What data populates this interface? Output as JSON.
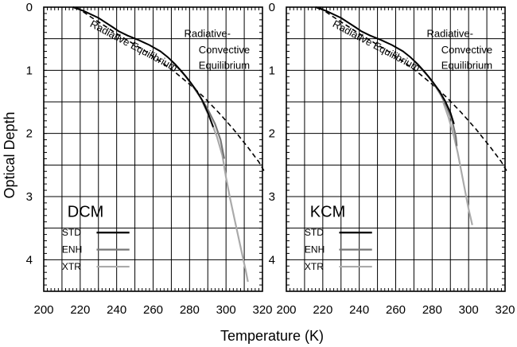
{
  "chart_data": {
    "type": "line",
    "xlabel": "Temperature (K)",
    "ylabel": "Optical Depth",
    "xlim": [
      200,
      320
    ],
    "ylim": [
      0,
      4.5
    ],
    "y_inverted": true,
    "xticks": [
      "200",
      "220",
      "240",
      "260",
      "280",
      "300",
      "320"
    ],
    "yticks": [
      "0",
      "1",
      "2",
      "3",
      "4"
    ],
    "grid": true,
    "legend_position": "bottom-left",
    "series_colors": {
      "STD": "#000000",
      "ENH": "#777777",
      "XTR": "#aaaaaa"
    },
    "reference_color": "#000000",
    "panels": [
      {
        "label": "DCM",
        "annotations": [
          {
            "text": "Radiative Equilibrium",
            "x": 225,
            "y": 0.3,
            "angle": 28
          },
          {
            "text": "Radiative-",
            "x": 277,
            "y": 0.47
          },
          {
            "text": "Convective",
            "x": 285,
            "y": 0.73
          },
          {
            "text": "Equilibrium",
            "x": 285,
            "y": 0.98
          }
        ],
        "series": [
          {
            "name": "STD",
            "x": [
              216,
              222,
              230,
              238,
              241,
              246,
              252,
              258,
              264,
              268,
              272,
              276,
              280,
              284,
              287,
              290,
              293
            ],
            "y": [
              0,
              0.06,
              0.17,
              0.32,
              0.38,
              0.45,
              0.52,
              0.6,
              0.7,
              0.79,
              0.9,
              1.03,
              1.17,
              1.33,
              1.48,
              1.67,
              1.9
            ]
          },
          {
            "name": "ENH",
            "x": [
              270,
              274,
              278,
              282,
              286,
              290,
              294,
              297,
              299
            ],
            "y": [
              0.85,
              0.97,
              1.1,
              1.26,
              1.43,
              1.62,
              1.85,
              2.1,
              2.4
            ]
          },
          {
            "name": "XTR",
            "x": [
              287,
              291,
              295,
              298,
              300,
              302,
              305,
              308,
              311,
              312
            ],
            "y": [
              1.5,
              1.75,
              2.05,
              2.35,
              2.7,
              3.0,
              3.4,
              3.8,
              4.2,
              4.35
            ]
          }
        ],
        "reference": {
          "name": "Radiative Equilibrium",
          "x": [
            218,
            225,
            232,
            240,
            248,
            256,
            264,
            272,
            280,
            288,
            296,
            304,
            312,
            318,
            321
          ],
          "y": [
            0,
            0.14,
            0.27,
            0.42,
            0.56,
            0.7,
            0.86,
            1.03,
            1.22,
            1.43,
            1.67,
            1.93,
            2.22,
            2.45,
            2.6
          ]
        }
      },
      {
        "label": "KCM",
        "annotations": [
          {
            "text": "Radiative Equilibrium",
            "x": 225,
            "y": 0.3,
            "angle": 28
          },
          {
            "text": "Radiative-",
            "x": 277,
            "y": 0.47
          },
          {
            "text": "Convective",
            "x": 285,
            "y": 0.73
          },
          {
            "text": "Equilibrium",
            "x": 285,
            "y": 0.98
          }
        ],
        "series": [
          {
            "name": "STD",
            "x": [
              216,
              222,
              230,
              238,
              241,
              246,
              252,
              258,
              264,
              268,
              272,
              276,
              280,
              284,
              287,
              290,
              292
            ],
            "y": [
              0,
              0.06,
              0.17,
              0.32,
              0.38,
              0.45,
              0.52,
              0.6,
              0.7,
              0.79,
              0.9,
              1.03,
              1.17,
              1.33,
              1.48,
              1.67,
              1.85
            ]
          },
          {
            "name": "ENH",
            "x": [
              270,
              274,
              278,
              282,
              285,
              288,
              291,
              293,
              293.5
            ],
            "y": [
              0.85,
              0.97,
              1.1,
              1.26,
              1.4,
              1.58,
              1.8,
              2.05,
              2.2
            ]
          },
          {
            "name": "XTR",
            "x": [
              286,
              289,
              292,
              294,
              296,
              298,
              300,
              302
            ],
            "y": [
              1.5,
              1.75,
              2.05,
              2.3,
              2.6,
              2.9,
              3.2,
              3.45
            ]
          }
        ],
        "reference": {
          "name": "Radiative Equilibrium",
          "x": [
            218,
            225,
            232,
            240,
            248,
            256,
            264,
            272,
            280,
            288,
            296,
            304,
            312,
            318,
            321
          ],
          "y": [
            0,
            0.14,
            0.27,
            0.42,
            0.56,
            0.7,
            0.86,
            1.03,
            1.22,
            1.43,
            1.67,
            1.93,
            2.22,
            2.45,
            2.6
          ]
        }
      }
    ],
    "legend": [
      "STD",
      "ENH",
      "XTR"
    ]
  }
}
